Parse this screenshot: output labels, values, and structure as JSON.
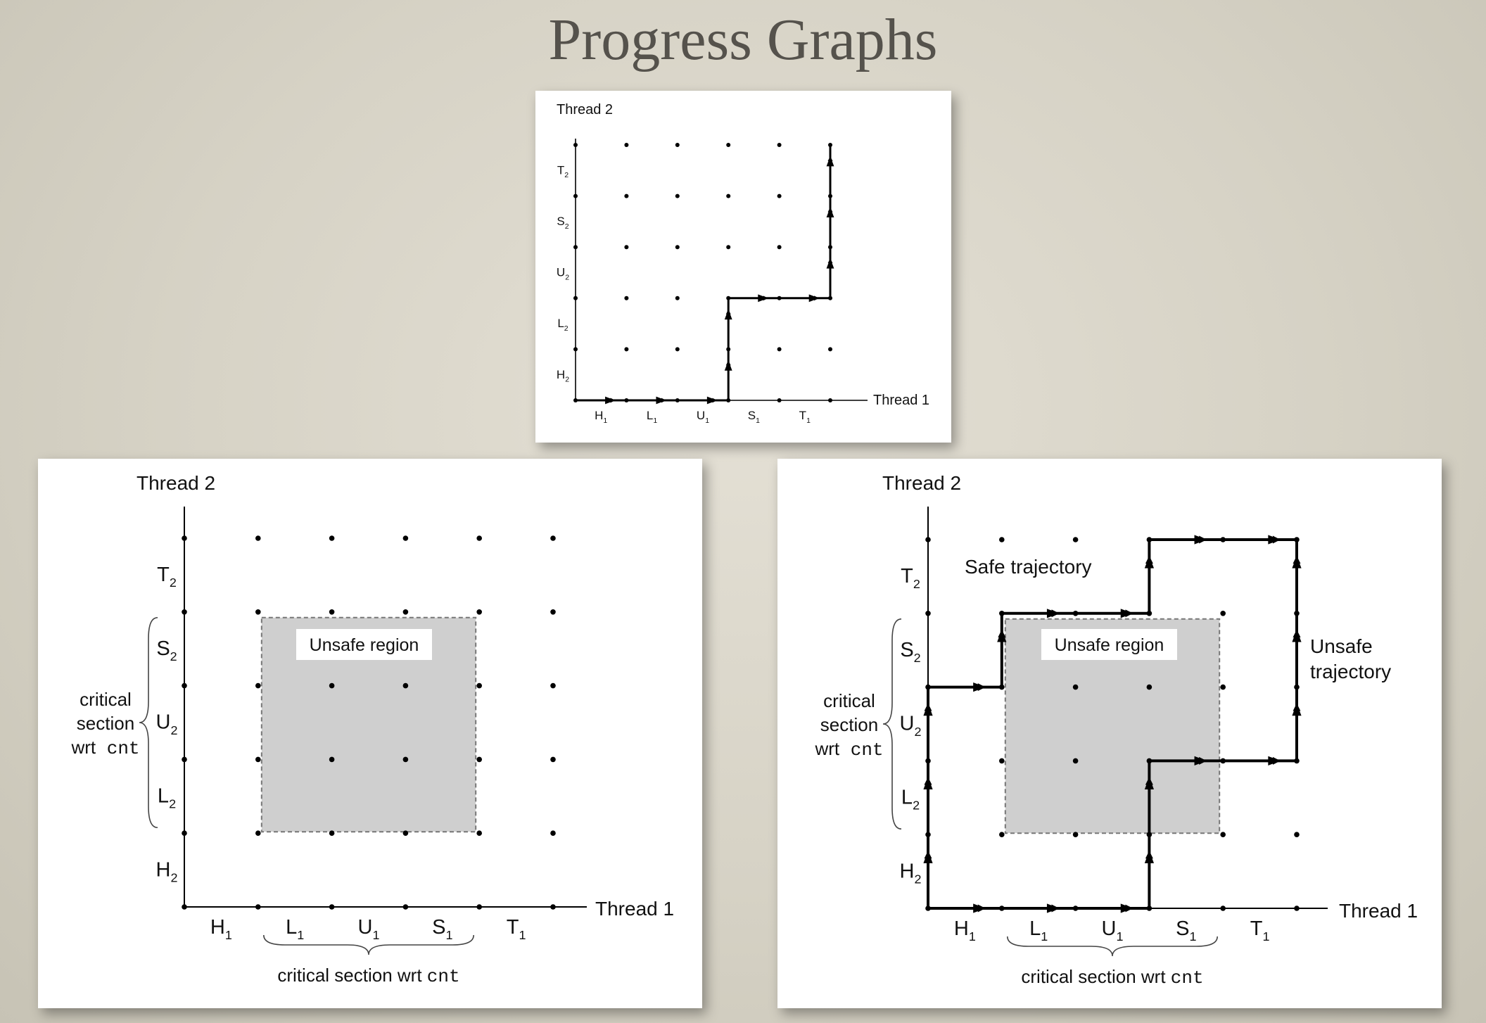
{
  "slide": {
    "title": "Progress Graphs"
  },
  "graphs": {
    "top": {
      "y_axis_label": "Thread 2",
      "x_axis_label": "Thread 1",
      "x_ticks": [
        {
          "base": "H",
          "sub": "1"
        },
        {
          "base": "L",
          "sub": "1"
        },
        {
          "base": "U",
          "sub": "1"
        },
        {
          "base": "S",
          "sub": "1"
        },
        {
          "base": "T",
          "sub": "1"
        }
      ],
      "y_ticks": [
        {
          "base": "H",
          "sub": "2"
        },
        {
          "base": "L",
          "sub": "2"
        },
        {
          "base": "U",
          "sub": "2"
        },
        {
          "base": "S",
          "sub": "2"
        },
        {
          "base": "T",
          "sub": "2"
        }
      ],
      "trajectory": [
        [
          0,
          0
        ],
        [
          1,
          0
        ],
        [
          2,
          0
        ],
        [
          3,
          0
        ],
        [
          3,
          1
        ],
        [
          3,
          2
        ],
        [
          4,
          2
        ],
        [
          5,
          2
        ],
        [
          5,
          3
        ],
        [
          5,
          4
        ],
        [
          5,
          5
        ]
      ]
    },
    "left": {
      "y_axis_label": "Thread 2",
      "x_axis_label": "Thread 1",
      "x_ticks": [
        {
          "base": "H",
          "sub": "1"
        },
        {
          "base": "L",
          "sub": "1"
        },
        {
          "base": "U",
          "sub": "1"
        },
        {
          "base": "S",
          "sub": "1"
        },
        {
          "base": "T",
          "sub": "1"
        }
      ],
      "y_ticks": [
        {
          "base": "H",
          "sub": "2"
        },
        {
          "base": "L",
          "sub": "2"
        },
        {
          "base": "U",
          "sub": "2"
        },
        {
          "base": "S",
          "sub": "2"
        },
        {
          "base": "T",
          "sub": "2"
        }
      ],
      "unsafe_region_label": "Unsafe region",
      "critical_section": {
        "prefix": "critical section wrt",
        "var": "cnt"
      },
      "critical_section_y_lines": [
        "critical",
        "section",
        "wrt"
      ]
    },
    "right": {
      "y_axis_label": "Thread 2",
      "x_axis_label": "Thread 1",
      "x_ticks": [
        {
          "base": "H",
          "sub": "1"
        },
        {
          "base": "L",
          "sub": "1"
        },
        {
          "base": "U",
          "sub": "1"
        },
        {
          "base": "S",
          "sub": "1"
        },
        {
          "base": "T",
          "sub": "1"
        }
      ],
      "y_ticks": [
        {
          "base": "H",
          "sub": "2"
        },
        {
          "base": "L",
          "sub": "2"
        },
        {
          "base": "U",
          "sub": "2"
        },
        {
          "base": "S",
          "sub": "2"
        },
        {
          "base": "T",
          "sub": "2"
        }
      ],
      "unsafe_region_label": "Unsafe region",
      "critical_section": {
        "prefix": "critical section wrt",
        "var": "cnt"
      },
      "critical_section_y_lines": [
        "critical",
        "section",
        "wrt"
      ],
      "safe_trajectory_label": "Safe trajectory",
      "unsafe_trajectory_label_lines": [
        "Unsafe",
        "trajectory"
      ],
      "safe_trajectory": [
        [
          0,
          0
        ],
        [
          0,
          1
        ],
        [
          0,
          2
        ],
        [
          0,
          3
        ],
        [
          1,
          3
        ],
        [
          1,
          4
        ],
        [
          2,
          4
        ],
        [
          3,
          4
        ],
        [
          3,
          5
        ],
        [
          4,
          5
        ],
        [
          5,
          5
        ]
      ],
      "unsafe_trajectory": [
        [
          0,
          0
        ],
        [
          1,
          0
        ],
        [
          2,
          0
        ],
        [
          3,
          0
        ],
        [
          3,
          1
        ],
        [
          3,
          2
        ],
        [
          4,
          2
        ],
        [
          5,
          2
        ],
        [
          5,
          3
        ],
        [
          5,
          4
        ],
        [
          5,
          5
        ]
      ]
    }
  }
}
